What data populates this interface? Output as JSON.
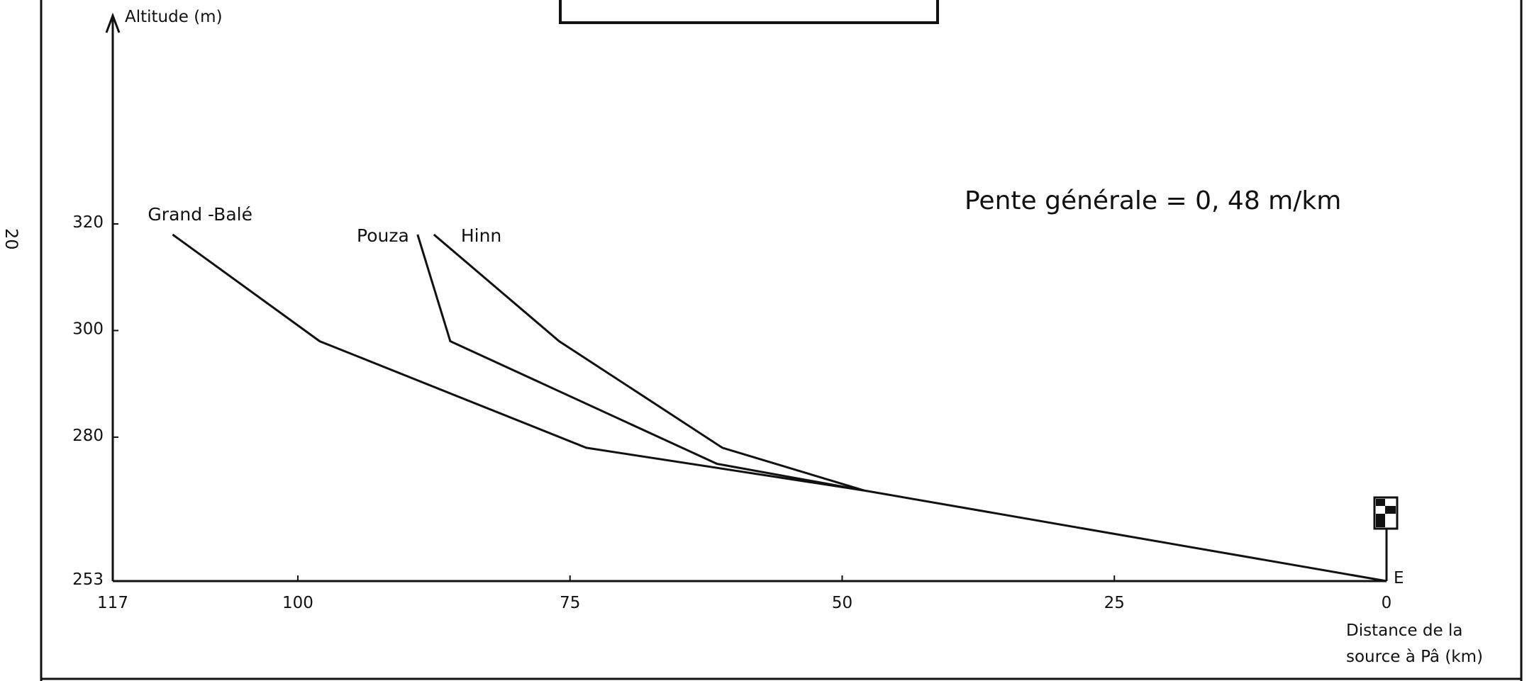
{
  "page_number": "20",
  "chart_data": {
    "type": "line",
    "ylabel": "Altitude (m)",
    "xlabel_lines": [
      "Distance de la",
      "source à Pâ (km)"
    ],
    "xlim": [
      117,
      0
    ],
    "ylim": [
      253,
      320
    ],
    "x_ticks": [
      {
        "value": 117,
        "label": "117"
      },
      {
        "value": 100,
        "label": "100"
      },
      {
        "value": 75,
        "label": "75"
      },
      {
        "value": 50,
        "label": "50"
      },
      {
        "value": 25,
        "label": "25"
      },
      {
        "value": 0,
        "label": "0"
      }
    ],
    "y_ticks": [
      {
        "value": 320,
        "label": "320"
      },
      {
        "value": 300,
        "label": "300"
      },
      {
        "value": 280,
        "label": "280"
      },
      {
        "value": 253,
        "label": "253"
      }
    ],
    "annotation": "Pente  générale = 0, 48 m/km",
    "outlet_label": "E",
    "series": [
      {
        "name": "Grand -Balé",
        "points": [
          [
            111.5,
            318
          ],
          [
            98,
            298
          ],
          [
            73.5,
            278
          ],
          [
            48,
            270
          ],
          [
            0,
            253
          ]
        ]
      },
      {
        "name": "Pouza",
        "points": [
          [
            89,
            318
          ],
          [
            86,
            298
          ],
          [
            61.5,
            275
          ],
          [
            48,
            270
          ]
        ]
      },
      {
        "name": "Hinn",
        "points": [
          [
            87.5,
            318
          ],
          [
            76,
            298
          ],
          [
            61,
            278
          ],
          [
            48,
            270
          ]
        ]
      }
    ]
  }
}
